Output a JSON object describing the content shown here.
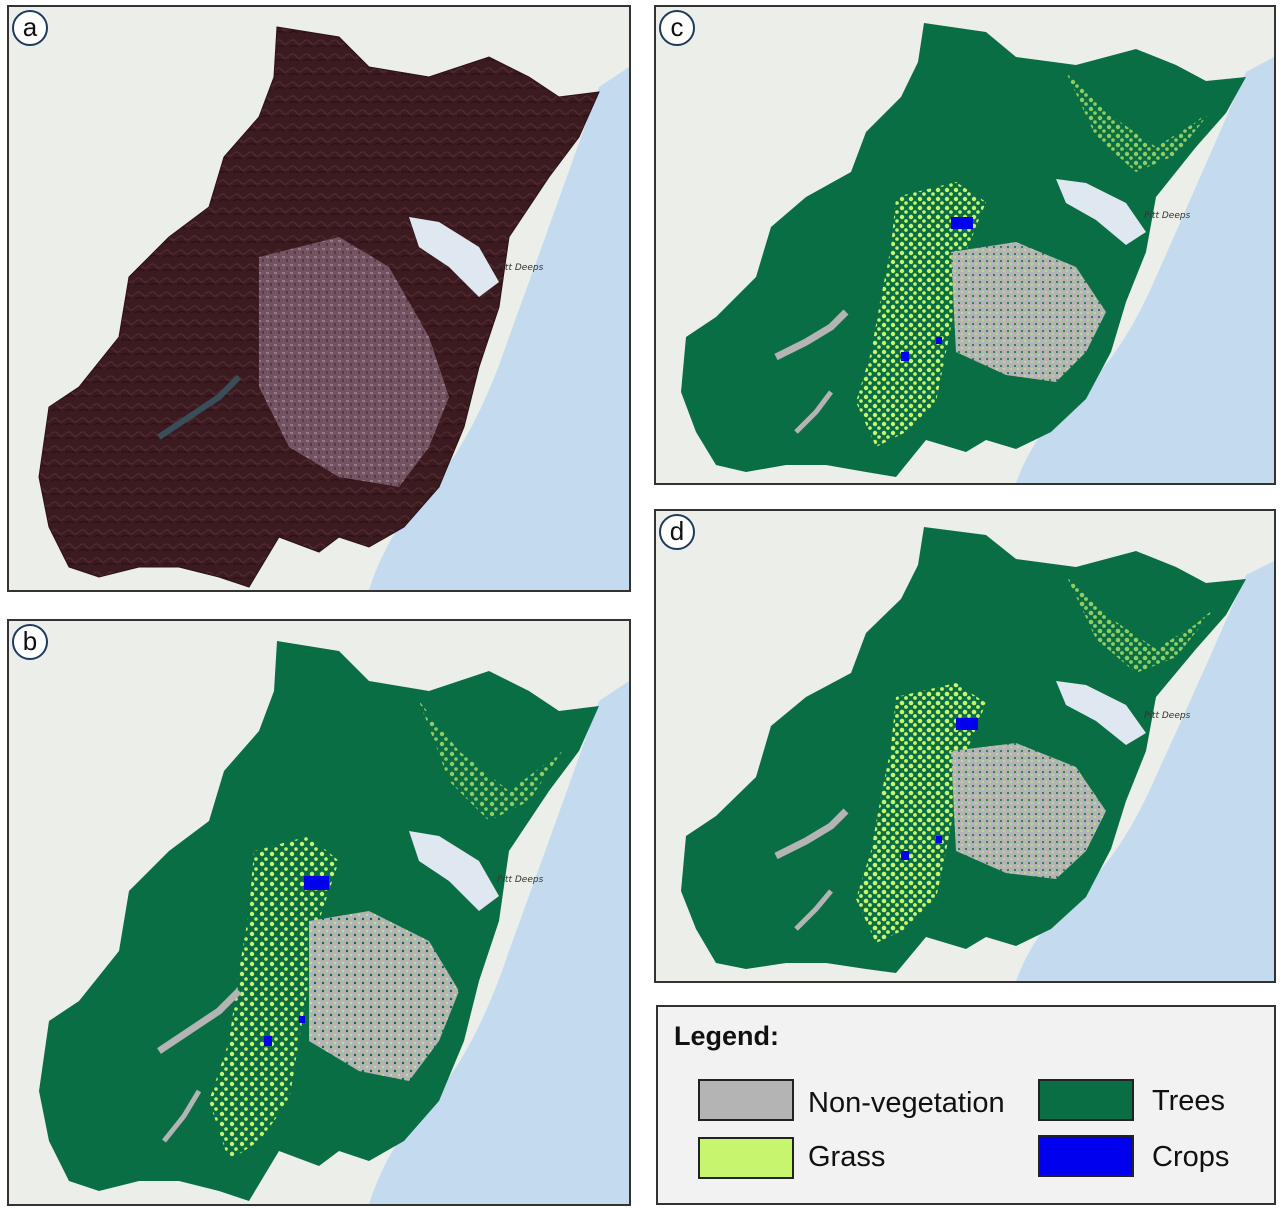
{
  "panels": [
    {
      "id": "a",
      "label": "a",
      "place": "Pitt Deeps"
    },
    {
      "id": "b",
      "label": "b",
      "place": "Pitt Deeps"
    },
    {
      "id": "c",
      "label": "c",
      "place": "Pitt Deeps"
    },
    {
      "id": "d",
      "label": "d",
      "place": "Pitt Deeps"
    }
  ],
  "legend": {
    "title": "Legend:",
    "items": [
      {
        "label": "Non-vegetation",
        "color": "#b4b4b4"
      },
      {
        "label": "Trees",
        "color": "#0a6e45"
      },
      {
        "label": "Grass",
        "color": "#c8f56e"
      },
      {
        "label": "Crops",
        "color": "#0000ee"
      }
    ]
  },
  "colors": {
    "satellite": "#3a1a1f",
    "urban_satellite": "#8a6a78",
    "ocean": "#c4dbef",
    "land_background": "#eceeea"
  }
}
